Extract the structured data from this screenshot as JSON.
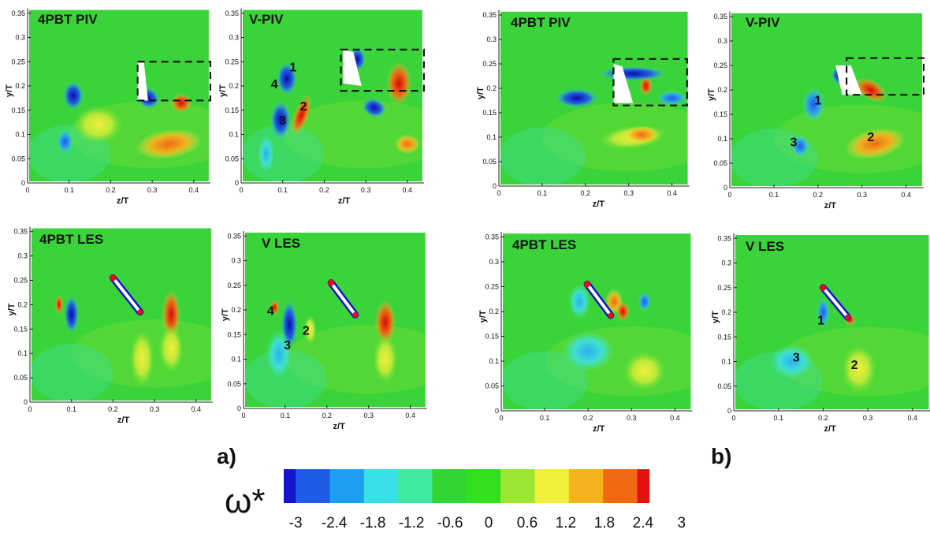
{
  "figure": {
    "group_labels": [
      "a)",
      "b)"
    ],
    "colorbar": {
      "symbol": "ω*",
      "ticks": [
        "-3",
        "-2.4",
        "-1.8",
        "-1.2",
        "-0.6",
        "0",
        "0.6",
        "1.2",
        "1.8",
        "2.4",
        "3"
      ],
      "colors": [
        "#1414cc",
        "#1f5ce6",
        "#1e9ef0",
        "#38e0e6",
        "#40e8a0",
        "#33d433",
        "#33e01f",
        "#99e633",
        "#f0f03a",
        "#f5b21f",
        "#f06a14",
        "#e61010"
      ]
    },
    "markers": {
      "panel_a_v_piv": [
        "1",
        "2",
        "3",
        "4"
      ],
      "panel_a_v_les": [
        "2",
        "3",
        "4"
      ],
      "panel_b_v_piv": [
        "1",
        "2",
        "3"
      ],
      "panel_b_v_les": [
        "1",
        "2",
        "3"
      ]
    }
  },
  "chart_data": [
    {
      "type": "heatmap",
      "title": "4PBT PIV",
      "xlabel": "z/T",
      "ylabel": "y/T",
      "xlim": [
        0,
        0.44
      ],
      "ylim": [
        0,
        0.36
      ],
      "xticks": [
        "0",
        "0.1",
        "0.2",
        "0.3",
        "0.4"
      ],
      "yticks": [
        "0",
        "0.05",
        "0.1",
        "0.15",
        "0.2",
        "0.25",
        "0.3",
        "0.35"
      ],
      "colorbar_range": [
        -3,
        3
      ]
    },
    {
      "type": "heatmap",
      "title": "V-PIV",
      "xlabel": "z/T",
      "ylabel": "y/T",
      "xlim": [
        0,
        0.44
      ],
      "ylim": [
        0,
        0.36
      ],
      "xticks": [
        "0",
        "0.1",
        "0.2",
        "0.3",
        "0.4"
      ],
      "yticks": [
        "0",
        "0.05",
        "0.1",
        "0.15",
        "0.2",
        "0.25",
        "0.3",
        "0.35"
      ],
      "colorbar_range": [
        -3,
        3
      ]
    },
    {
      "type": "heatmap",
      "title": "4PBT PIV",
      "xlabel": "z/T",
      "ylabel": "y/T",
      "xlim": [
        0,
        0.44
      ],
      "ylim": [
        0,
        0.36
      ],
      "xticks": [
        "0",
        "0.1",
        "0.2",
        "0.3",
        "0.4"
      ],
      "yticks": [
        "0",
        "0.05",
        "0.1",
        "0.15",
        "0.2",
        "0.25",
        "0.3",
        "0.35"
      ],
      "colorbar_range": [
        -3,
        3
      ]
    },
    {
      "type": "heatmap",
      "title": "V-PIV",
      "xlabel": "z/T",
      "ylabel": "y/T",
      "xlim": [
        0,
        0.44
      ],
      "ylim": [
        0,
        0.36
      ],
      "xticks": [
        "0",
        "0.1",
        "0.2",
        "0.3",
        "0.4"
      ],
      "yticks": [
        "0",
        "0.05",
        "0.1",
        "0.15",
        "0.2",
        "0.25",
        "0.3",
        "0.35"
      ],
      "colorbar_range": [
        -3,
        3
      ]
    },
    {
      "type": "heatmap",
      "title": "4PBT LES",
      "xlabel": "z/T",
      "ylabel": "y/T",
      "xlim": [
        0,
        0.44
      ],
      "ylim": [
        0,
        0.36
      ],
      "xticks": [
        "0",
        "0.1",
        "0.2",
        "0.3",
        "0.4"
      ],
      "yticks": [
        "0",
        "0.05",
        "0.1",
        "0.15",
        "0.2",
        "0.25",
        "0.3",
        "0.35"
      ],
      "colorbar_range": [
        -3,
        3
      ]
    },
    {
      "type": "heatmap",
      "title": "V LES",
      "xlabel": "z/T",
      "ylabel": "y/T",
      "xlim": [
        0,
        0.44
      ],
      "ylim": [
        0,
        0.36
      ],
      "xticks": [
        "0",
        "0.1",
        "0.2",
        "0.3",
        "0.4"
      ],
      "yticks": [
        "0",
        "0.05",
        "0.1",
        "0.15",
        "0.2",
        "0.25",
        "0.3",
        "0.35"
      ],
      "colorbar_range": [
        -3,
        3
      ]
    },
    {
      "type": "heatmap",
      "title": "4PBT LES",
      "xlabel": "z/T",
      "ylabel": "y/T",
      "xlim": [
        0,
        0.44
      ],
      "ylim": [
        0,
        0.36
      ],
      "xticks": [
        "0",
        "0.1",
        "0.2",
        "0.3",
        "0.4"
      ],
      "yticks": [
        "0",
        "0.05",
        "0.1",
        "0.15",
        "0.2",
        "0.25",
        "0.3",
        "0.35"
      ],
      "colorbar_range": [
        -3,
        3
      ]
    },
    {
      "type": "heatmap",
      "title": "V LES",
      "xlabel": "z/T",
      "ylabel": "y/T",
      "xlim": [
        0,
        0.44
      ],
      "ylim": [
        0,
        0.36
      ],
      "xticks": [
        "0",
        "0.1",
        "0.2",
        "0.3",
        "0.4"
      ],
      "yticks": [
        "0",
        "0.05",
        "0.1",
        "0.15",
        "0.2",
        "0.25",
        "0.3",
        "0.35"
      ],
      "colorbar_range": [
        -3,
        3
      ]
    }
  ]
}
